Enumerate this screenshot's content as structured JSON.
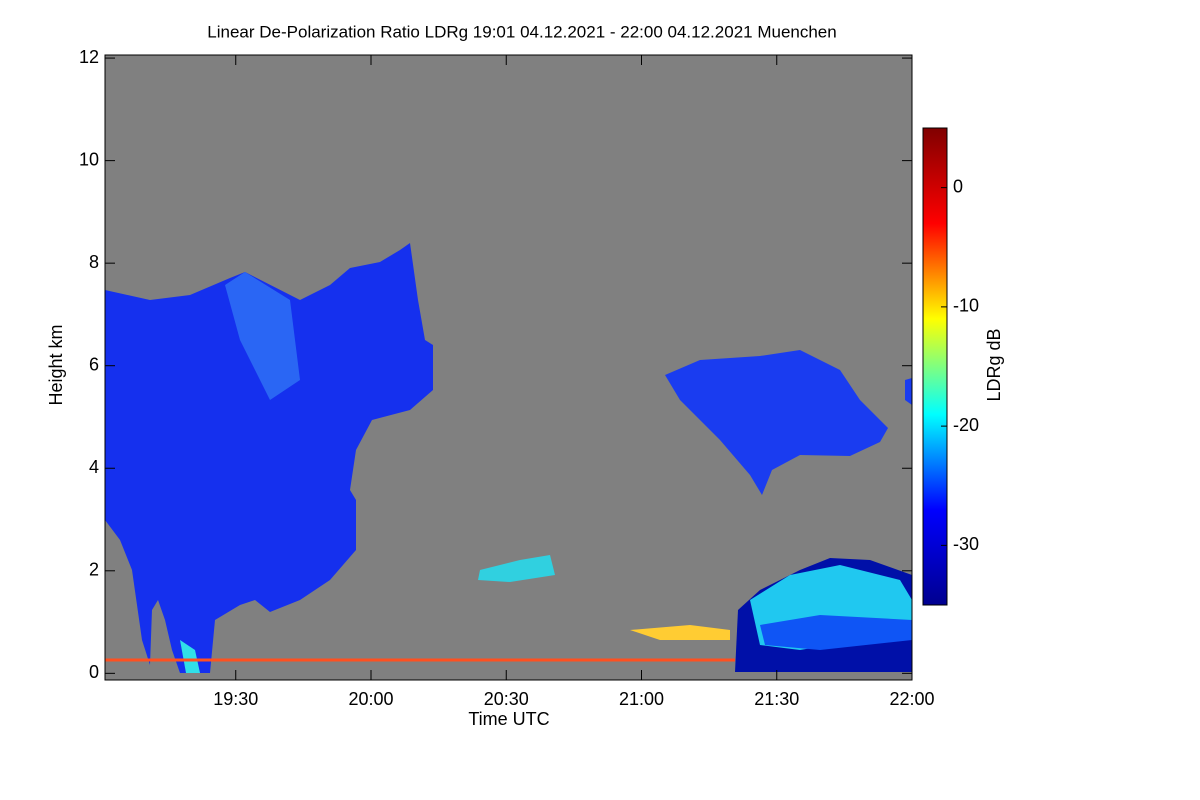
{
  "chart_data": {
    "type": "heatmap",
    "title": "Linear De-Polarization Ratio LDRg   19:01 04.12.2021 - 22:00 04.12.2021 Muenchen",
    "xlabel": "Time UTC",
    "ylabel": "Height km",
    "colorbar_label": "LDRg dB",
    "xlim": [
      1141,
      1320
    ],
    "xticks": [
      {
        "value": 1170,
        "label": "19:30"
      },
      {
        "value": 1200,
        "label": "20:00"
      },
      {
        "value": 1230,
        "label": "20:30"
      },
      {
        "value": 1260,
        "label": "21:00"
      },
      {
        "value": 1290,
        "label": "21:30"
      },
      {
        "value": 1320,
        "label": "22:00"
      }
    ],
    "ylim": [
      -0.13,
      12.06
    ],
    "yticks": [
      0,
      2,
      4,
      6,
      8,
      10,
      12
    ],
    "clim": [
      -35,
      5
    ],
    "cticks": [
      -30,
      -20,
      -10,
      0
    ],
    "colormap": [
      "#00008f",
      "#0000ff",
      "#00ffff",
      "#ffff00",
      "#ff0000",
      "#800000"
    ],
    "missing_color": "#808080"
  }
}
